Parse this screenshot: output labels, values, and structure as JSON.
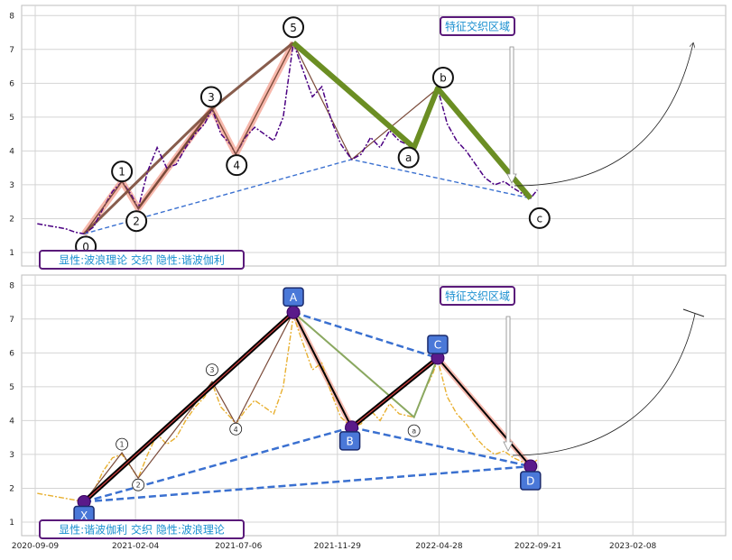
{
  "chart_data": {
    "type": "line",
    "x_ticks": [
      "2020-09-09",
      "2021-02-04",
      "2021-07-06",
      "2021-11-29",
      "2022-04-28",
      "2022-09-21",
      "2023-02-08"
    ],
    "y_ticks": [
      "1",
      "2",
      "3",
      "4",
      "5",
      "6",
      "7",
      "8"
    ],
    "ylim": [
      0.6,
      8.3
    ],
    "xlim": [
      "2020-08-20",
      "2023-06-25"
    ],
    "grid": true,
    "colors": {
      "price_top": "#4b0082",
      "price_bottom": "#e8b030",
      "wave_brown": "#7b4b3a",
      "wave_green": "#6b8e23",
      "trend_blue": "#3a70d0",
      "box_blue": "#4a78d8",
      "highlight_pink": "#f4a090",
      "annot_border": "#5a1a7a",
      "annot_text": "#1a8fd0"
    },
    "panels": [
      {
        "name": "elliott",
        "region_label": "特征交织区域",
        "bottom_label": "显性:波浪理论 交织 隐性:谐波伽利",
        "impulse_points": [
          {
            "label": "0",
            "date": "2020-11-20",
            "value": 1.55
          },
          {
            "label": "1",
            "date": "2021-01-15",
            "value": 3.1
          },
          {
            "label": "2",
            "date": "2021-02-08",
            "value": 2.3
          },
          {
            "label": "3",
            "date": "2021-05-28",
            "value": 5.25
          },
          {
            "label": "4",
            "date": "2021-07-02",
            "value": 3.9
          },
          {
            "label": "5",
            "date": "2021-09-25",
            "value": 7.2
          }
        ],
        "correction_points": [
          {
            "label": "a",
            "date": "2022-03-22",
            "value": 4.1
          },
          {
            "label": "b",
            "date": "2022-04-26",
            "value": 5.85
          },
          {
            "label": "c",
            "date": "2022-09-10",
            "value": 2.6
          }
        ],
        "trend_line": [
          {
            "date": "2020-11-20",
            "value": 1.55
          },
          {
            "date": "2021-12-20",
            "value": 3.75
          },
          {
            "date": "2022-09-10",
            "value": 2.6
          }
        ],
        "price": [
          [
            "2020-09-12",
            1.85
          ],
          [
            "2020-09-26",
            1.8
          ],
          [
            "2020-10-10",
            1.75
          ],
          [
            "2020-10-24",
            1.7
          ],
          [
            "2020-11-07",
            1.6
          ],
          [
            "2020-11-20",
            1.55
          ],
          [
            "2020-12-04",
            1.75
          ],
          [
            "2020-12-18",
            2.3
          ],
          [
            "2021-01-01",
            2.8
          ],
          [
            "2021-01-15",
            3.1
          ],
          [
            "2021-01-29",
            2.7
          ],
          [
            "2021-02-08",
            2.3
          ],
          [
            "2021-02-22",
            3.4
          ],
          [
            "2021-03-08",
            4.1
          ],
          [
            "2021-03-22",
            3.5
          ],
          [
            "2021-04-05",
            3.6
          ],
          [
            "2021-04-19",
            4.1
          ],
          [
            "2021-05-03",
            4.5
          ],
          [
            "2021-05-17",
            4.8
          ],
          [
            "2021-05-28",
            5.25
          ],
          [
            "2021-06-10",
            4.5
          ],
          [
            "2021-06-24",
            4.2
          ],
          [
            "2021-07-02",
            3.9
          ],
          [
            "2021-07-16",
            4.4
          ],
          [
            "2021-07-30",
            4.7
          ],
          [
            "2021-08-13",
            4.5
          ],
          [
            "2021-08-27",
            4.3
          ],
          [
            "2021-09-10",
            5.0
          ],
          [
            "2021-09-25",
            7.2
          ],
          [
            "2021-10-09",
            6.4
          ],
          [
            "2021-10-23",
            5.6
          ],
          [
            "2021-11-06",
            5.9
          ],
          [
            "2021-11-20",
            4.9
          ],
          [
            "2021-12-04",
            4.2
          ],
          [
            "2021-12-20",
            3.75
          ],
          [
            "2022-01-03",
            3.9
          ],
          [
            "2022-01-17",
            4.4
          ],
          [
            "2022-01-31",
            4.1
          ],
          [
            "2022-02-14",
            4.6
          ],
          [
            "2022-02-28",
            4.3
          ],
          [
            "2022-03-22",
            4.1
          ],
          [
            "2022-04-05",
            4.9
          ],
          [
            "2022-04-19",
            5.5
          ],
          [
            "2022-04-26",
            5.85
          ],
          [
            "2022-05-10",
            4.8
          ],
          [
            "2022-05-24",
            4.3
          ],
          [
            "2022-06-07",
            4.0
          ],
          [
            "2022-06-21",
            3.6
          ],
          [
            "2022-07-05",
            3.2
          ],
          [
            "2022-07-19",
            3.0
          ],
          [
            "2022-08-02",
            3.1
          ],
          [
            "2022-08-16",
            2.9
          ],
          [
            "2022-09-01",
            2.7
          ],
          [
            "2022-09-10",
            2.6
          ],
          [
            "2022-09-20",
            2.85
          ]
        ]
      },
      {
        "name": "harmonic",
        "region_label": "特征交织区域",
        "bottom_label": "显性:谐波伽利 交织 隐性:波浪理论",
        "harmonic_points": [
          {
            "label": "X",
            "date": "2020-11-20",
            "value": 1.6
          },
          {
            "label": "A",
            "date": "2021-09-25",
            "value": 7.2
          },
          {
            "label": "B",
            "date": "2021-12-20",
            "value": 3.8
          },
          {
            "label": "C",
            "date": "2022-04-26",
            "value": 5.85
          },
          {
            "label": "D",
            "date": "2022-09-10",
            "value": 2.65
          }
        ],
        "wave_labels": [
          {
            "label": "1",
            "date": "2021-01-15",
            "value": 3.3
          },
          {
            "label": "2",
            "date": "2021-02-08",
            "value": 2.1
          },
          {
            "label": "3",
            "date": "2021-05-28",
            "value": 5.5
          },
          {
            "label": "4",
            "date": "2021-07-02",
            "value": 3.75
          },
          {
            "label": "a",
            "date": "2022-03-22",
            "value": 3.7
          }
        ],
        "price": [
          [
            "2020-09-12",
            1.85
          ],
          [
            "2020-09-26",
            1.8
          ],
          [
            "2020-10-10",
            1.75
          ],
          [
            "2020-10-24",
            1.7
          ],
          [
            "2020-11-07",
            1.65
          ],
          [
            "2020-11-20",
            1.6
          ],
          [
            "2020-12-04",
            1.9
          ],
          [
            "2020-12-18",
            2.5
          ],
          [
            "2021-01-01",
            2.9
          ],
          [
            "2021-01-15",
            3.0
          ],
          [
            "2021-01-29",
            2.6
          ],
          [
            "2021-02-08",
            2.3
          ],
          [
            "2021-02-22",
            3.0
          ],
          [
            "2021-03-08",
            3.6
          ],
          [
            "2021-03-22",
            3.3
          ],
          [
            "2021-04-05",
            3.5
          ],
          [
            "2021-04-19",
            4.0
          ],
          [
            "2021-05-03",
            4.4
          ],
          [
            "2021-05-17",
            4.7
          ],
          [
            "2021-05-28",
            5.1
          ],
          [
            "2021-06-10",
            4.4
          ],
          [
            "2021-06-24",
            4.1
          ],
          [
            "2021-07-02",
            3.9
          ],
          [
            "2021-07-16",
            4.3
          ],
          [
            "2021-07-30",
            4.6
          ],
          [
            "2021-08-13",
            4.4
          ],
          [
            "2021-08-27",
            4.2
          ],
          [
            "2021-09-10",
            5.0
          ],
          [
            "2021-09-25",
            7.1
          ],
          [
            "2021-10-09",
            6.3
          ],
          [
            "2021-10-23",
            5.5
          ],
          [
            "2021-11-06",
            5.7
          ],
          [
            "2021-11-20",
            4.8
          ],
          [
            "2021-12-04",
            4.1
          ],
          [
            "2021-12-20",
            3.8
          ],
          [
            "2022-01-03",
            3.9
          ],
          [
            "2022-01-17",
            4.3
          ],
          [
            "2022-01-31",
            4.0
          ],
          [
            "2022-02-14",
            4.5
          ],
          [
            "2022-02-28",
            4.2
          ],
          [
            "2022-03-22",
            4.1
          ],
          [
            "2022-04-05",
            4.8
          ],
          [
            "2022-04-19",
            5.4
          ],
          [
            "2022-04-26",
            5.8
          ],
          [
            "2022-05-10",
            4.7
          ],
          [
            "2022-05-24",
            4.2
          ],
          [
            "2022-06-07",
            3.9
          ],
          [
            "2022-06-21",
            3.5
          ],
          [
            "2022-07-05",
            3.2
          ],
          [
            "2022-07-19",
            3.0
          ],
          [
            "2022-08-02",
            3.1
          ],
          [
            "2022-08-16",
            2.9
          ],
          [
            "2022-09-01",
            2.75
          ],
          [
            "2022-09-10",
            2.65
          ],
          [
            "2022-09-20",
            2.85
          ]
        ]
      }
    ]
  }
}
